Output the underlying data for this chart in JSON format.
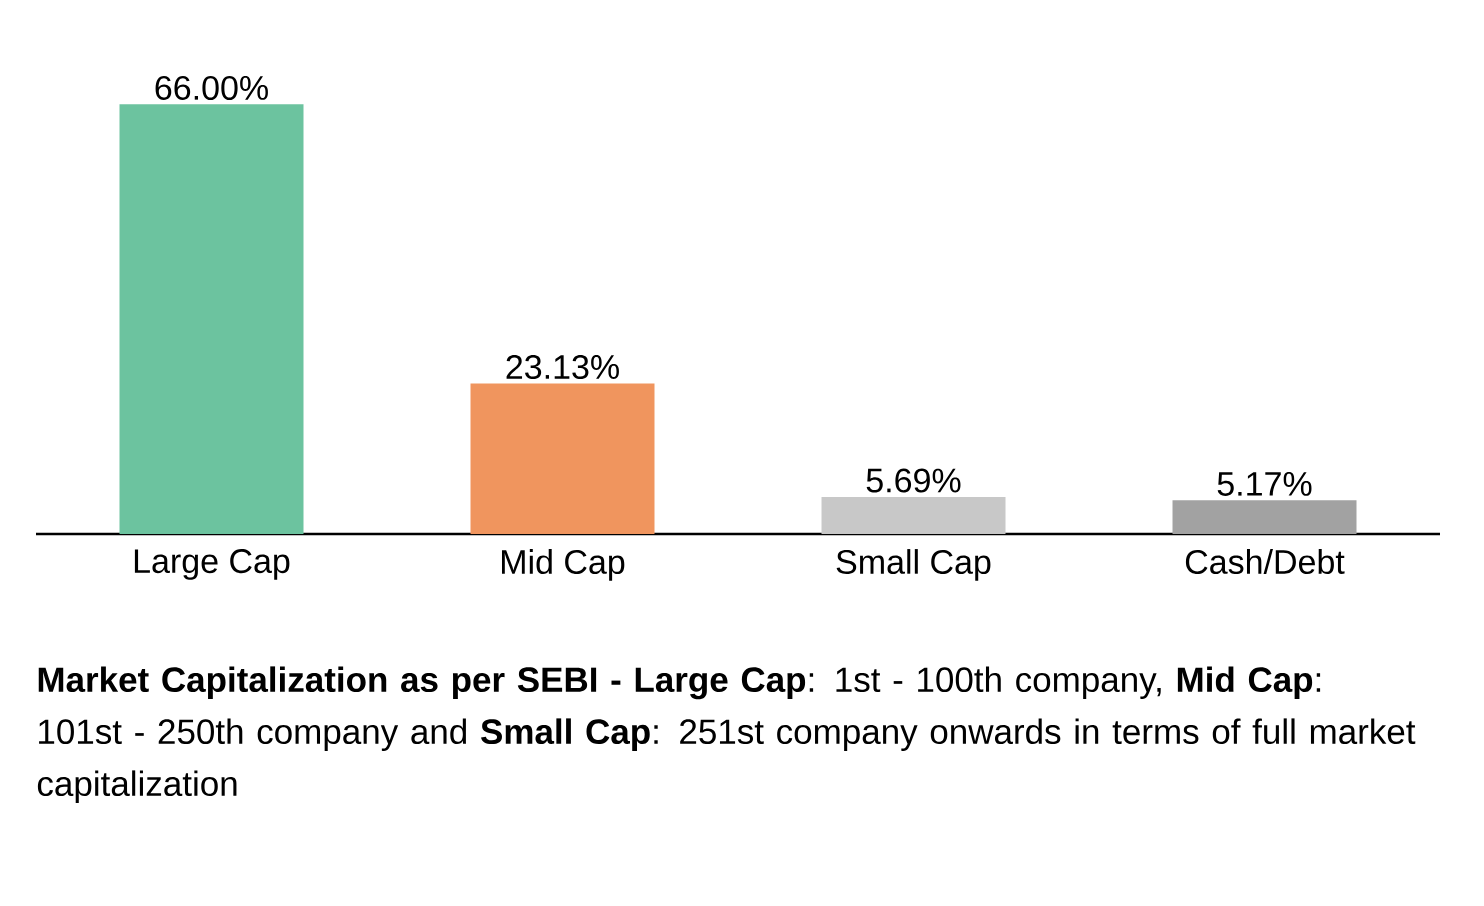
{
  "chart_data": {
    "type": "bar",
    "categories": [
      "Large Cap",
      "Mid Cap",
      "Small Cap",
      "Cash/Debt"
    ],
    "values": [
      66.0,
      23.13,
      5.69,
      5.17
    ],
    "colors": [
      "#6cc39f",
      "#f0955e",
      "#c8c8c8",
      "#a2a2a2"
    ],
    "value_labels": [
      "66.00%",
      "23.13%",
      "5.69%",
      "5.17%"
    ],
    "tick_labels": "x",
    "annotations": [
      "**Market Capitalization as per SEBI - Large Cap**: 1st - 100th company, **Mid Cap**: 101st - 250th company and **Small Cap**: 251st company onwards in terms of full market capitalization"
    ]
  }
}
